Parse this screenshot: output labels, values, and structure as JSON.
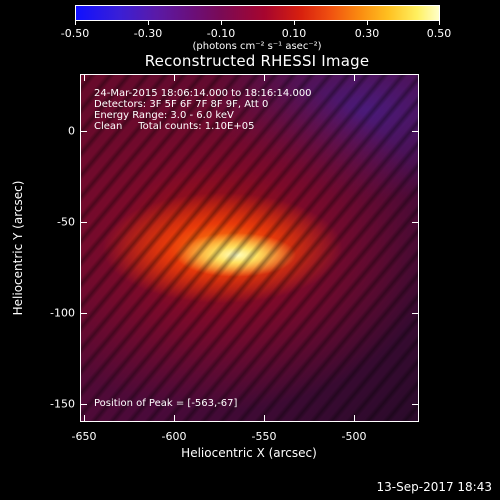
{
  "colorbar": {
    "ticks": [
      "-0.50",
      "-0.30",
      "-0.10",
      "0.10",
      "0.30",
      "0.50"
    ],
    "units": "(photons cm⁻² s⁻¹ asec⁻²)"
  },
  "title": "Reconstructed RHESSI Image",
  "annotations": {
    "time": "24-Mar-2015 18:06:14.000 to 18:16:14.000",
    "detectors": "Detectors: 3F 5F 6F 7F 8F 9F, Att 0",
    "energy": "Energy Range: 3.0 - 6.0 keV",
    "clean": "Clean     Total counts: 1.10E+05",
    "peak": "Position of Peak = [-563,-67]"
  },
  "axes": {
    "x_title": "Heliocentric X (arcsec)",
    "y_title": "Heliocentric Y (arcsec)",
    "x_ticks": [
      "-650",
      "-600",
      "-550",
      "-500"
    ],
    "y_ticks": [
      "0",
      "-50",
      "-100",
      "-150"
    ]
  },
  "footer": {
    "timestamp": "13-Sep-2017 18:43"
  }
}
